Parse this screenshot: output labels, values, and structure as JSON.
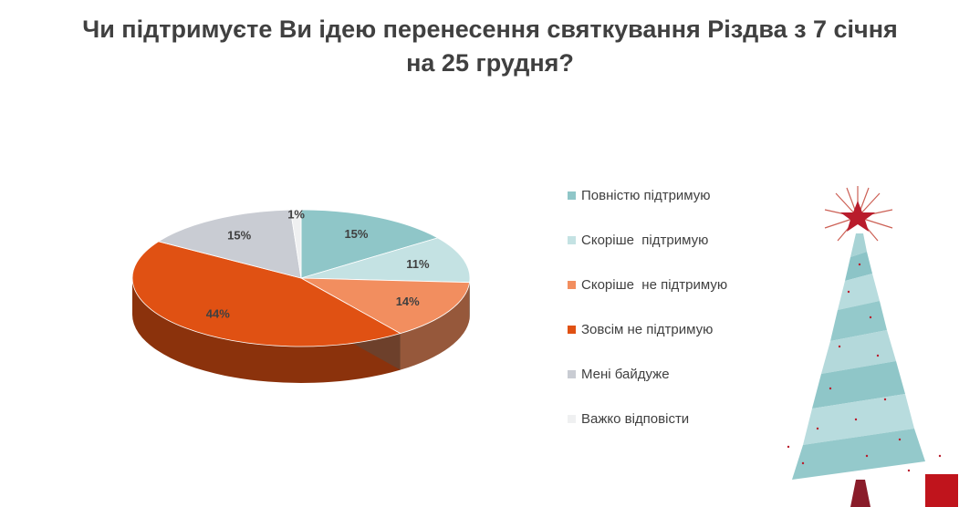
{
  "title_lines": [
    "Чи підтримуєте Ви ідею перенесення святкування Різдва з 7 січня",
    "на 25 грудня?"
  ],
  "chart_data": {
    "type": "pie",
    "style": "3d",
    "legend_position": "right",
    "slices": [
      {
        "label": "Повністю підтримую",
        "value": 15,
        "value_label": "15%",
        "color": "#8fc6c8"
      },
      {
        "label": "Скоріше  підтримую",
        "value": 11,
        "value_label": "11%",
        "color": "#c4e2e3"
      },
      {
        "label": "Скоріше  не підтримую",
        "value": 14,
        "value_label": "14%",
        "color": "#f28e5f"
      },
      {
        "label": "Зовсім не підтримую",
        "value": 44,
        "value_label": "44%",
        "color": "#e05113"
      },
      {
        "label": "Мені байдуже",
        "value": 15,
        "value_label": "15%",
        "color": "#c9ccd3"
      },
      {
        "label": "Важко відповісти",
        "value": 1,
        "value_label": "1%",
        "color": "#eff0f1"
      }
    ]
  },
  "decoration": {
    "icon": "christmas-tree-icon",
    "ribbon_color": "#a8d3d5",
    "star_color": "#b91c2c",
    "gift_color": "#c0141c"
  }
}
